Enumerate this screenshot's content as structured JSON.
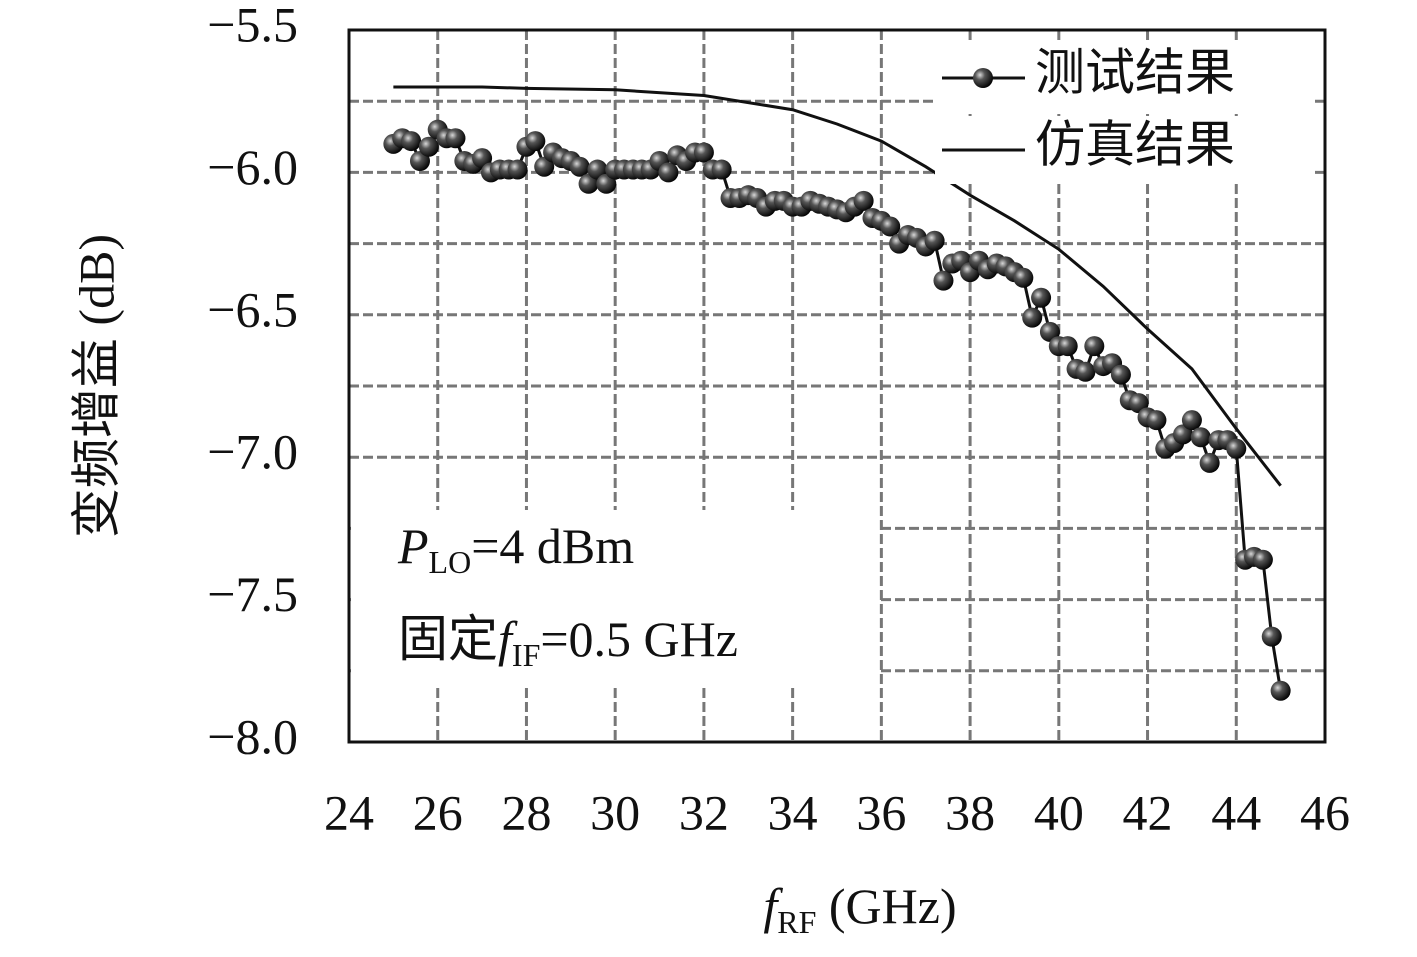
{
  "chart_data": {
    "type": "line",
    "xlabel": [
      "f",
      "RF",
      " (GHz)"
    ],
    "ylabel": "变频增益 (dB)",
    "annotations": [
      [
        "P",
        "LO",
        "=4 dBm"
      ],
      [
        "固定",
        "f",
        "IF",
        "=0.5 GHz"
      ]
    ],
    "xlim": [
      24,
      46
    ],
    "xticks": [
      24,
      26,
      28,
      30,
      32,
      34,
      36,
      38,
      40,
      42,
      44,
      46
    ],
    "ylim": [
      -8.0,
      -5.5
    ],
    "yticks": [
      {
        "value": -5.5,
        "label": "−5.5"
      },
      {
        "value": -6.0,
        "label": "−6.0"
      },
      {
        "value": -6.5,
        "label": "−6.5"
      },
      {
        "value": -7.0,
        "label": "−7.0"
      },
      {
        "value": -7.5,
        "label": "−7.5"
      },
      {
        "value": -8.0,
        "label": "−8.0"
      }
    ],
    "y_minor_grid": [
      -5.75,
      -6.25,
      -6.75,
      -7.25,
      -7.75
    ],
    "grid": true,
    "legend": "upper right",
    "series": [
      {
        "name": "测试结果",
        "color": "#111111",
        "markers": true,
        "x": [
          25.0,
          25.2,
          25.4,
          25.6,
          25.8,
          26.0,
          26.2,
          26.4,
          26.6,
          26.8,
          27.0,
          27.2,
          27.4,
          27.6,
          27.8,
          28.0,
          28.2,
          28.4,
          28.6,
          28.8,
          29.0,
          29.2,
          29.4,
          29.6,
          29.8,
          30.0,
          30.2,
          30.4,
          30.6,
          30.8,
          31.0,
          31.2,
          31.4,
          31.6,
          31.8,
          32.0,
          32.2,
          32.4,
          32.6,
          32.8,
          33.0,
          33.2,
          33.4,
          33.6,
          33.8,
          34.0,
          34.2,
          34.4,
          34.6,
          34.8,
          35.0,
          35.2,
          35.4,
          35.6,
          35.8,
          36.0,
          36.2,
          36.4,
          36.6,
          36.8,
          37.0,
          37.2,
          37.4,
          37.6,
          37.8,
          38.0,
          38.2,
          38.4,
          38.6,
          38.8,
          39.0,
          39.2,
          39.4,
          39.6,
          39.8,
          40.0,
          40.2,
          40.4,
          40.6,
          40.8,
          41.0,
          41.2,
          41.4,
          41.6,
          41.8,
          42.0,
          42.2,
          42.4,
          42.6,
          42.8,
          43.0,
          43.2,
          43.4,
          43.6,
          43.8,
          44.0,
          44.2,
          44.4,
          44.6,
          44.8,
          45.0
        ],
        "values": [
          -5.9,
          -5.88,
          -5.89,
          -5.96,
          -5.91,
          -5.85,
          -5.88,
          -5.88,
          -5.96,
          -5.97,
          -5.95,
          -6.0,
          -5.99,
          -5.99,
          -5.99,
          -5.91,
          -5.89,
          -5.98,
          -5.93,
          -5.95,
          -5.96,
          -5.98,
          -6.04,
          -5.99,
          -6.04,
          -5.99,
          -5.99,
          -5.99,
          -5.99,
          -5.99,
          -5.96,
          -6.0,
          -5.94,
          -5.96,
          -5.93,
          -5.93,
          -5.99,
          -5.99,
          -6.09,
          -6.09,
          -6.08,
          -6.09,
          -6.12,
          -6.1,
          -6.1,
          -6.12,
          -6.12,
          -6.1,
          -6.11,
          -6.12,
          -6.13,
          -6.14,
          -6.12,
          -6.1,
          -6.16,
          -6.17,
          -6.19,
          -6.25,
          -6.22,
          -6.23,
          -6.26,
          -6.24,
          -6.38,
          -6.32,
          -6.31,
          -6.35,
          -6.31,
          -6.34,
          -6.32,
          -6.33,
          -6.35,
          -6.37,
          -6.51,
          -6.44,
          -6.56,
          -6.61,
          -6.61,
          -6.69,
          -6.7,
          -6.61,
          -6.68,
          -6.67,
          -6.71,
          -6.8,
          -6.81,
          -6.86,
          -6.87,
          -6.97,
          -6.95,
          -6.92,
          -6.87,
          -6.93,
          -7.02,
          -6.94,
          -6.94,
          -6.97,
          -7.36,
          -7.35,
          -7.36,
          -7.63,
          -7.82
        ]
      },
      {
        "name": "仿真结果",
        "color": "#111111",
        "markers": false,
        "x": [
          25,
          27,
          28,
          30,
          32,
          34,
          35,
          36,
          37,
          38,
          39,
          40,
          41,
          42,
          43,
          44,
          45
        ],
        "values": [
          -5.7,
          -5.7,
          -5.705,
          -5.71,
          -5.73,
          -5.78,
          -5.83,
          -5.89,
          -5.98,
          -6.08,
          -6.17,
          -6.27,
          -6.4,
          -6.55,
          -6.69,
          -6.9,
          -7.1
        ]
      }
    ]
  }
}
